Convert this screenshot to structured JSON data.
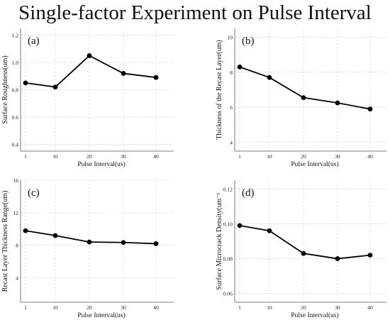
{
  "title": "Single-factor Experiment on Pulse Interval",
  "chart_data": [
    {
      "type": "line",
      "panel_label": "(a)",
      "title": "",
      "xlabel": "Pulse Interval(us)",
      "ylabel": "Surface Roughness(um)",
      "x": [
        "1",
        "10",
        "20",
        "30",
        "40"
      ],
      "xticks": [
        "1",
        "10",
        "20",
        "30",
        "40"
      ],
      "values": [
        0.85,
        0.82,
        1.05,
        0.92,
        0.89
      ],
      "ylim": [
        0.35,
        1.25
      ],
      "yticks": [
        0.4,
        0.6,
        0.8,
        1.0,
        1.2
      ],
      "ytick_labels": [
        "0.4",
        "0.6",
        "0.8",
        "1.0",
        "1.2"
      ],
      "grid": true,
      "color": "#000000"
    },
    {
      "type": "line",
      "panel_label": "(b)",
      "title": "",
      "xlabel": "Pulse Interval(us)",
      "ylabel": "Thickness of the Recast Layer(um)",
      "x": [
        "1",
        "10",
        "20",
        "30",
        "40"
      ],
      "xticks": [
        "1",
        "10",
        "20",
        "30",
        "40"
      ],
      "values": [
        8.3,
        7.7,
        6.55,
        6.25,
        5.9
      ],
      "ylim": [
        3.5,
        10.5
      ],
      "yticks": [
        4,
        6,
        8,
        10
      ],
      "ytick_labels": [
        "4",
        "6",
        "8",
        "10"
      ],
      "grid": true,
      "color": "#000000"
    },
    {
      "type": "line",
      "panel_label": "(c)",
      "title": "",
      "xlabel": "Pulse Interval(us)",
      "ylabel": "Recast Layer Thickness Range(um)",
      "x": [
        "1",
        "10",
        "20",
        "30",
        "40"
      ],
      "xticks": [
        "1",
        "10",
        "20",
        "30",
        "40"
      ],
      "values": [
        9.8,
        9.2,
        8.4,
        8.35,
        8.2
      ],
      "ylim": [
        1.0,
        16.0
      ],
      "yticks": [
        4,
        8,
        12,
        16
      ],
      "ytick_labels": [
        "4",
        "8",
        "12",
        "16"
      ],
      "grid": true,
      "color": "#000000"
    },
    {
      "type": "line",
      "panel_label": "(d)",
      "title": "",
      "xlabel": "Pulse Interval(us)",
      "ylabel": "Surface Microcrack Density(um⁻¹",
      "x": [
        "1",
        "10",
        "20",
        "30",
        "40"
      ],
      "xticks": [
        "1",
        "10",
        "20",
        "30",
        "40"
      ],
      "values": [
        0.099,
        0.096,
        0.083,
        0.08,
        0.082
      ],
      "ylim": [
        0.055,
        0.125
      ],
      "yticks": [
        0.06,
        0.08,
        0.1,
        0.12
      ],
      "ytick_labels": [
        "0.06",
        "0.08",
        "0.10",
        "0.12"
      ],
      "grid": true,
      "color": "#000000"
    }
  ]
}
